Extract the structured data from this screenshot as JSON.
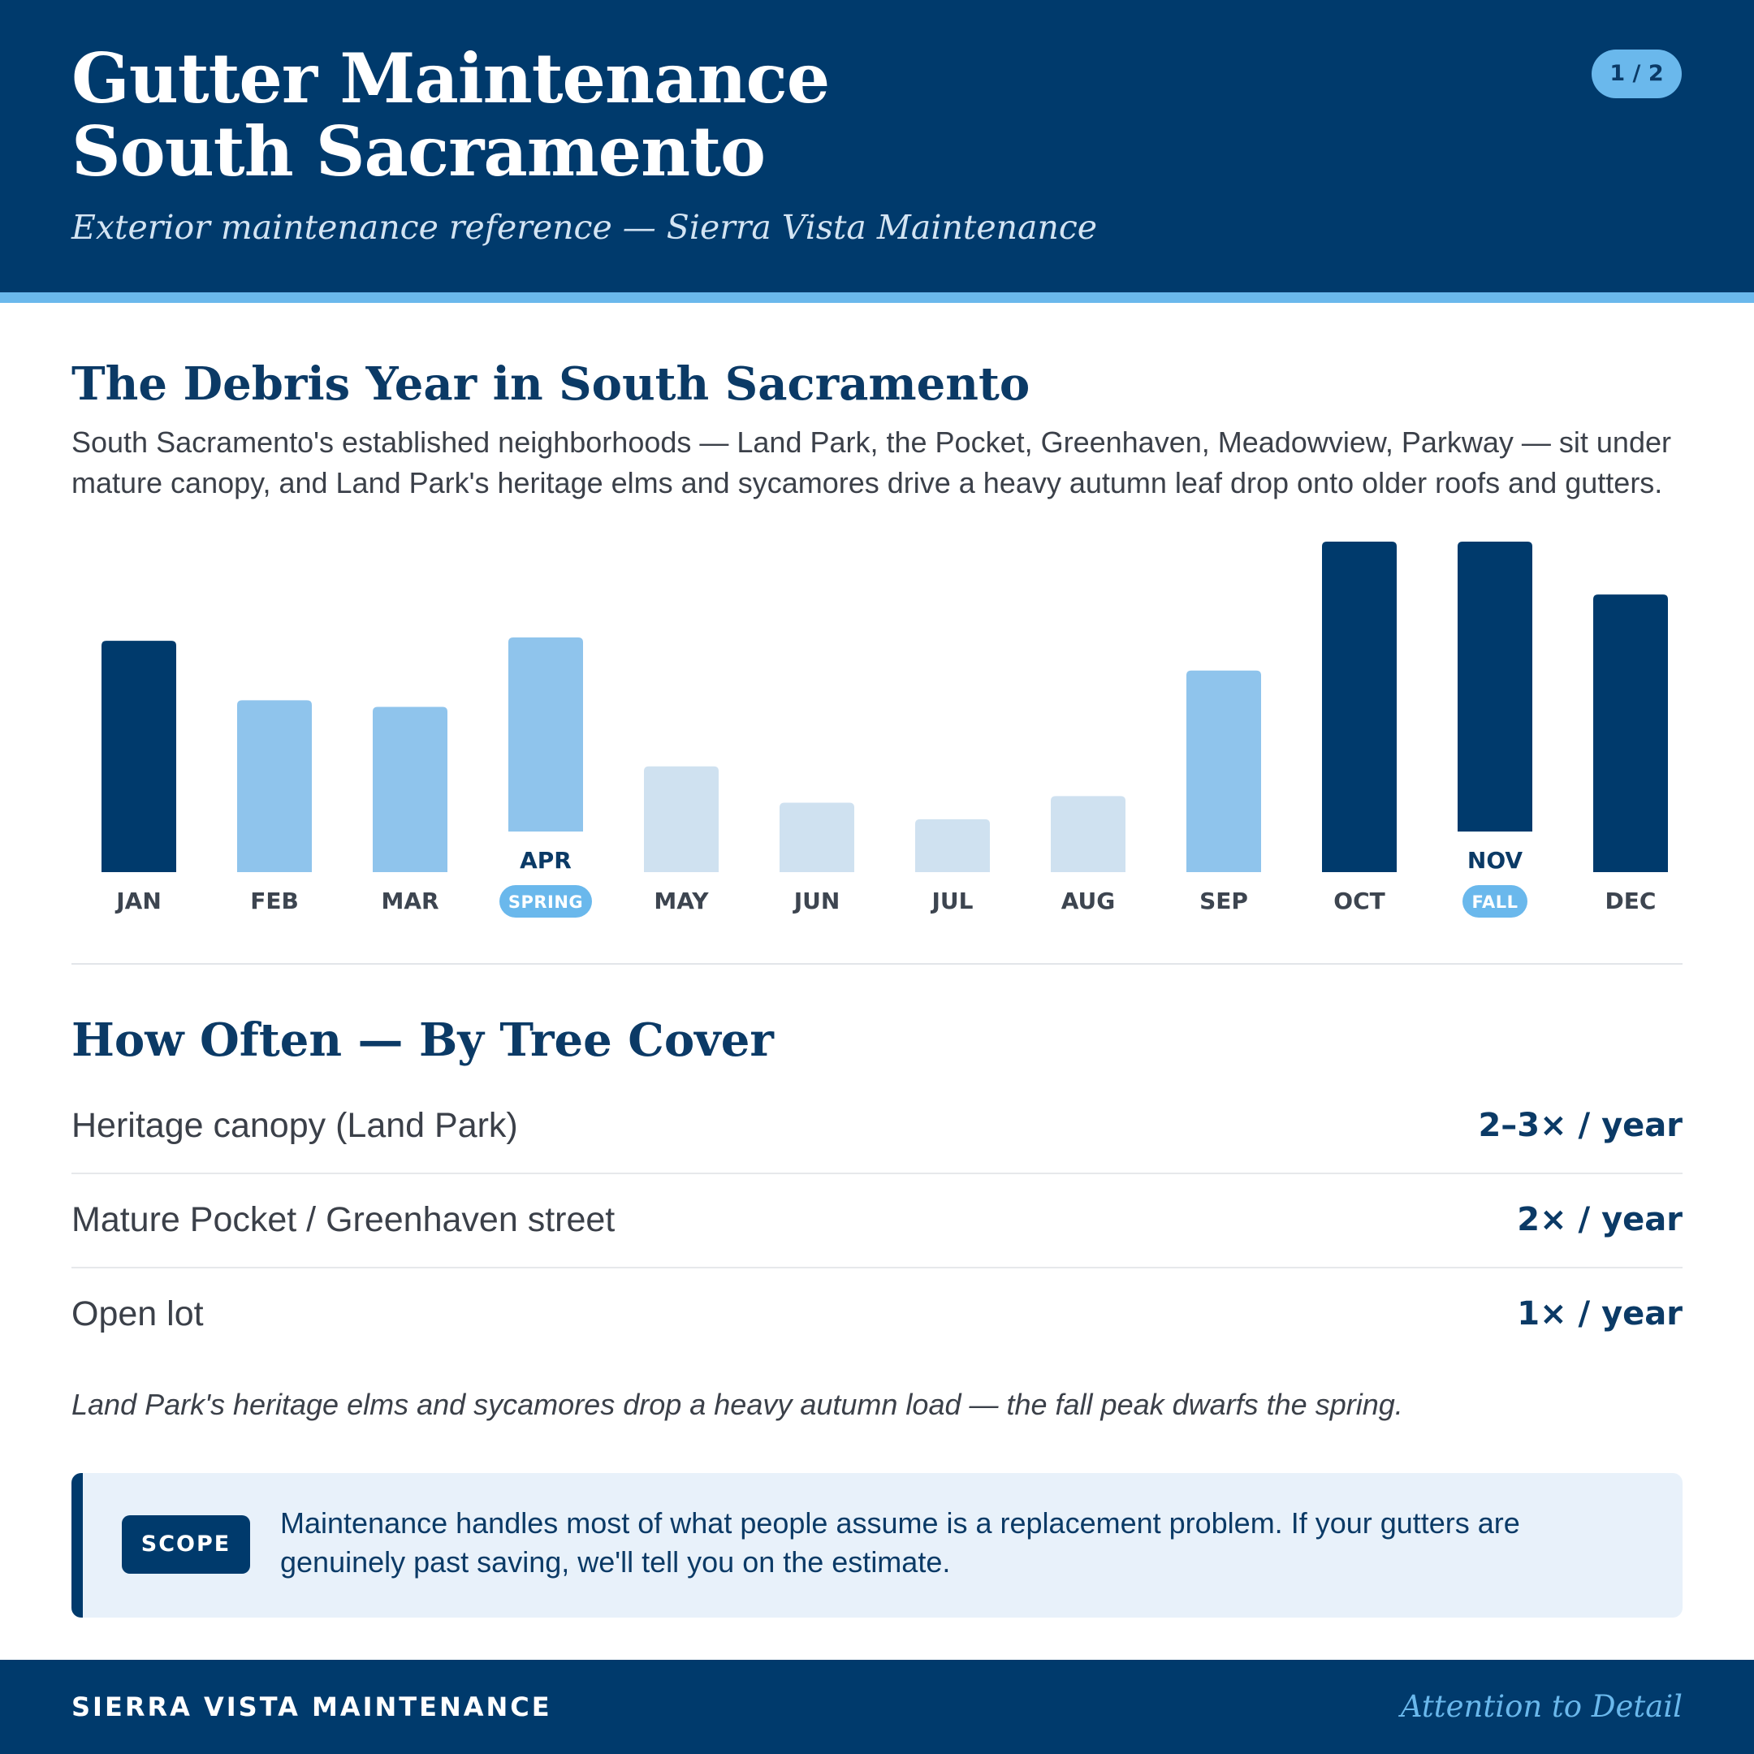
{
  "header": {
    "title_line1": "Gutter Maintenance",
    "title_line2": "South Sacramento",
    "subtitle": "Exterior maintenance reference — Sierra Vista Maintenance",
    "page_indicator": "1 / 2"
  },
  "debris_section": {
    "heading": "The Debris Year in South Sacramento",
    "intro": "South Sacramento's established neighborhoods — Land Park, the Pocket, Greenhaven, Meadowview, Parkway — sit under mature canopy, and Land Park's heritage elms and sycamores drive a heavy autumn leaf drop onto older roofs and gutters."
  },
  "chart_data": {
    "type": "bar",
    "categories": [
      "JAN",
      "FEB",
      "MAR",
      "APR",
      "MAY",
      "JUN",
      "JUL",
      "AUG",
      "SEP",
      "OCT",
      "NOV",
      "DEC"
    ],
    "values": [
      70,
      52,
      50,
      71,
      32,
      21,
      16,
      23,
      61,
      100,
      100,
      84
    ],
    "levels": [
      "high",
      "medium",
      "medium",
      "medium",
      "low",
      "low",
      "low",
      "low",
      "medium",
      "high",
      "high",
      "high"
    ],
    "season_markers": [
      {
        "category": "APR",
        "label": "SPRING"
      },
      {
        "category": "NOV",
        "label": "FALL"
      }
    ],
    "ylim": [
      0,
      100
    ],
    "grid": false,
    "colors": {
      "high": "#003a6c",
      "medium": "#8fc4ec",
      "low": "#cfe1f0",
      "pill": "#6ab8ec"
    }
  },
  "frequency_section": {
    "heading": "How Often — By Tree Cover",
    "rows": [
      {
        "label": "Heritage canopy (Land Park)",
        "value": "2–3× / year"
      },
      {
        "label": "Mature Pocket / Greenhaven street",
        "value": "2× / year"
      },
      {
        "label": "Open lot",
        "value": "1× / year"
      }
    ],
    "note": "Land Park's heritage elms and sycamores drop a heavy autumn load — the fall peak dwarfs the spring."
  },
  "scope": {
    "badge": "SCOPE",
    "text": "Maintenance handles most of what people assume is a replacement problem. If your gutters are genuinely past saving, we'll tell you on the estimate."
  },
  "footer": {
    "brand": "SIERRA VISTA MAINTENANCE",
    "tagline": "Attention to Detail"
  }
}
